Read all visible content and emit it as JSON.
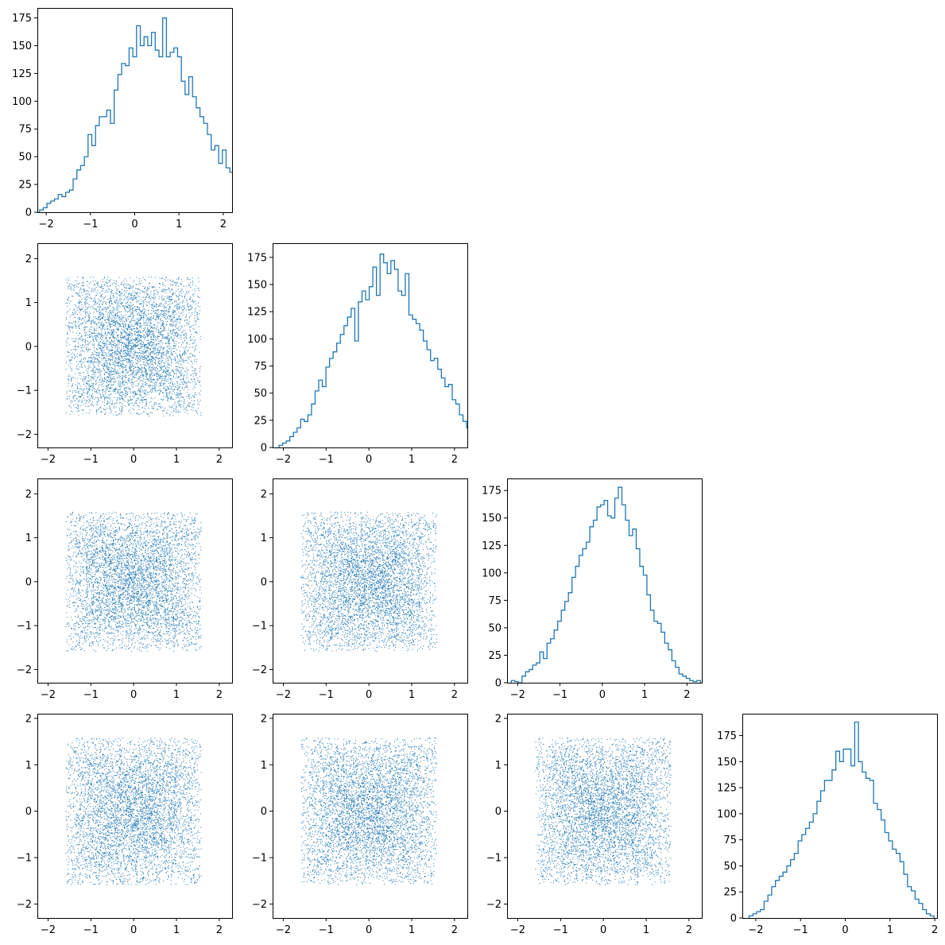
{
  "chart_data": {
    "type": "corner",
    "series_color": "#1f77b4",
    "grid": false,
    "panels": [
      {
        "row": 0,
        "col": 0,
        "type": "histogram",
        "xlim": [
          -2.2,
          2.2
        ],
        "ylim": [
          0,
          184
        ],
        "xticks": [
          -2,
          -1,
          0,
          1,
          2
        ],
        "yticks": [
          0,
          25,
          50,
          75,
          100,
          125,
          150,
          175
        ],
        "bin_start": -2.15,
        "bin_width": 0.0843,
        "counts": [
          2,
          4,
          8,
          10,
          12,
          16,
          14,
          18,
          20,
          30,
          38,
          42,
          50,
          70,
          60,
          78,
          86,
          86,
          92,
          80,
          110,
          124,
          134,
          132,
          148,
          140,
          168,
          150,
          158,
          150,
          162,
          146,
          140,
          175,
          140,
          144,
          148,
          140,
          118,
          106,
          122,
          104,
          94,
          86,
          80,
          70,
          56,
          60,
          44,
          56,
          40,
          36,
          30,
          24,
          22,
          16,
          18,
          14,
          6,
          4,
          2,
          2,
          2
        ]
      },
      {
        "row": 1,
        "col": 1,
        "type": "histogram",
        "xlim": [
          -2.25,
          2.3
        ],
        "ylim": [
          0,
          188
        ],
        "xticks": [
          -2,
          -1,
          0,
          1,
          2
        ],
        "yticks": [
          0,
          25,
          50,
          75,
          100,
          125,
          150,
          175
        ],
        "bin_start": -2.1,
        "bin_width": 0.0843,
        "counts": [
          2,
          4,
          6,
          10,
          14,
          18,
          26,
          24,
          30,
          40,
          52,
          62,
          56,
          74,
          82,
          88,
          96,
          104,
          112,
          120,
          128,
          98,
          134,
          144,
          136,
          148,
          166,
          140,
          178,
          170,
          160,
          172,
          164,
          144,
          140,
          160,
          122,
          118,
          114,
          108,
          98,
          90,
          80,
          82,
          72,
          64,
          56,
          58,
          44,
          40,
          30,
          24,
          18,
          14,
          8,
          6,
          4,
          2,
          2
        ]
      },
      {
        "row": 2,
        "col": 2,
        "type": "histogram",
        "xlim": [
          -2.25,
          2.35
        ],
        "ylim": [
          0,
          186
        ],
        "xticks": [
          -2,
          -1,
          0,
          1,
          2
        ],
        "yticks": [
          0,
          25,
          50,
          75,
          100,
          125,
          150,
          175
        ],
        "bin_start": -2.15,
        "bin_width": 0.0843,
        "counts": [
          2,
          1,
          0,
          6,
          10,
          12,
          16,
          18,
          28,
          22,
          36,
          40,
          48,
          56,
          66,
          74,
          82,
          96,
          106,
          116,
          122,
          128,
          142,
          148,
          160,
          162,
          166,
          152,
          150,
          168,
          178,
          162,
          148,
          134,
          140,
          122,
          106,
          98,
          80,
          66,
          56,
          54,
          46,
          36,
          30,
          20,
          14,
          8,
          6,
          4,
          2,
          1,
          2
        ]
      },
      {
        "row": 3,
        "col": 3,
        "type": "histogram",
        "xlim": [
          -2.3,
          2.05
        ],
        "ylim": [
          0,
          196
        ],
        "xticks": [
          -2,
          -1,
          0,
          1,
          2
        ],
        "yticks": [
          0,
          25,
          50,
          75,
          100,
          125,
          150,
          175
        ],
        "bin_start": -2.15,
        "bin_width": 0.0843,
        "counts": [
          2,
          4,
          6,
          8,
          16,
          22,
          30,
          36,
          40,
          44,
          50,
          56,
          62,
          74,
          80,
          86,
          92,
          100,
          112,
          122,
          132,
          132,
          142,
          160,
          150,
          162,
          162,
          146,
          188,
          150,
          140,
          134,
          132,
          110,
          104,
          94,
          82,
          74,
          66,
          62,
          54,
          42,
          30,
          26,
          18,
          14,
          8,
          4,
          2
        ]
      },
      {
        "row": 1,
        "col": 0,
        "type": "scatter",
        "xlim": [
          -2.25,
          2.3
        ],
        "ylim": [
          -2.3,
          2.35
        ],
        "xticks": [
          -2,
          -1,
          0,
          1,
          2
        ],
        "yticks": [
          -2,
          -1,
          0,
          1,
          2
        ],
        "n_points": 5000,
        "seed": 11
      },
      {
        "row": 2,
        "col": 0,
        "type": "scatter",
        "xlim": [
          -2.25,
          2.3
        ],
        "ylim": [
          -2.3,
          2.35
        ],
        "xticks": [
          -2,
          -1,
          0,
          1,
          2
        ],
        "yticks": [
          -2,
          -1,
          0,
          1,
          2
        ],
        "n_points": 5000,
        "seed": 23
      },
      {
        "row": 2,
        "col": 1,
        "type": "scatter",
        "xlim": [
          -2.25,
          2.3
        ],
        "ylim": [
          -2.3,
          2.35
        ],
        "xticks": [
          -2,
          -1,
          0,
          1,
          2
        ],
        "yticks": [
          -2,
          -1,
          0,
          1,
          2
        ],
        "n_points": 5000,
        "seed": 37
      },
      {
        "row": 3,
        "col": 0,
        "type": "scatter",
        "xlim": [
          -2.25,
          2.3
        ],
        "ylim": [
          -2.3,
          2.1
        ],
        "xticks": [
          -2,
          -1,
          0,
          1,
          2
        ],
        "yticks": [
          -2,
          -1,
          0,
          1,
          2
        ],
        "n_points": 5000,
        "seed": 41
      },
      {
        "row": 3,
        "col": 1,
        "type": "scatter",
        "xlim": [
          -2.25,
          2.3
        ],
        "ylim": [
          -2.3,
          2.1
        ],
        "xticks": [
          -2,
          -1,
          0,
          1,
          2
        ],
        "yticks": [
          -2,
          -1,
          0,
          1,
          2
        ],
        "n_points": 5000,
        "seed": 53
      },
      {
        "row": 3,
        "col": 2,
        "type": "scatter",
        "xlim": [
          -2.25,
          2.3
        ],
        "ylim": [
          -2.3,
          2.1
        ],
        "xticks": [
          -2,
          -1,
          0,
          1,
          2
        ],
        "yticks": [
          -2,
          -1,
          0,
          1,
          2
        ],
        "n_points": 5000,
        "seed": 67
      }
    ]
  }
}
